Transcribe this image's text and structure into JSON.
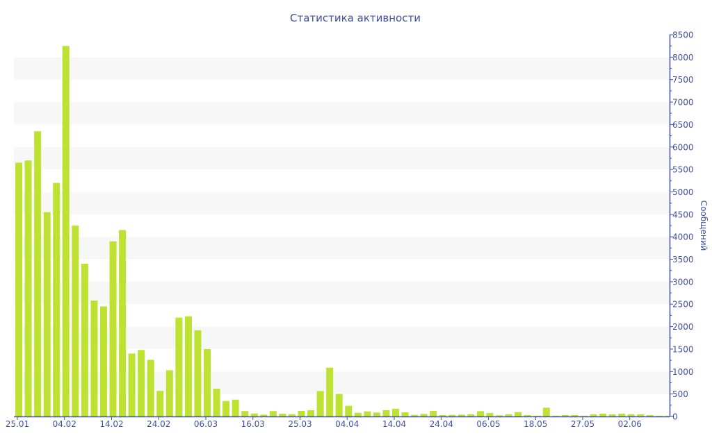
{
  "chart_data": {
    "type": "bar",
    "title": "Статистика активности",
    "xlabel": "",
    "ylabel": "Сообщений",
    "ylim": [
      0,
      8500
    ],
    "y_ticks": [
      0,
      500,
      1000,
      1500,
      2000,
      2500,
      3000,
      3500,
      4000,
      4500,
      5000,
      5500,
      6000,
      6500,
      7000,
      7500,
      8000,
      8500
    ],
    "y_axis_side": "right",
    "grid": "alternating horizontal bands",
    "x_tick_labels": [
      "25.01",
      "04.02",
      "14.02",
      "24.02",
      "06.03",
      "16.03",
      "25.03",
      "04.04",
      "14.04",
      "24.04",
      "06.05",
      "18.05",
      "27.05",
      "02.06"
    ],
    "values": [
      5650,
      5700,
      6350,
      4550,
      5200,
      8250,
      4250,
      3400,
      2580,
      2450,
      3900,
      4150,
      1400,
      1480,
      1260,
      570,
      1030,
      2200,
      2230,
      1920,
      1500,
      620,
      345,
      375,
      120,
      66,
      41,
      120,
      62,
      46,
      124,
      140,
      567,
      1086,
      500,
      237,
      82,
      113,
      87,
      140,
      170,
      93,
      36,
      57,
      124,
      31,
      36,
      41,
      46,
      118,
      77,
      26,
      46,
      98,
      31,
      15,
      196,
      15,
      31,
      31,
      15,
      46,
      62,
      46,
      62,
      46,
      46,
      31,
      15,
      15
    ],
    "colors": {
      "bar": "#bde232",
      "axis": "#3f51a0",
      "band": "#f7f7f7",
      "text": "#3f51a0"
    }
  }
}
